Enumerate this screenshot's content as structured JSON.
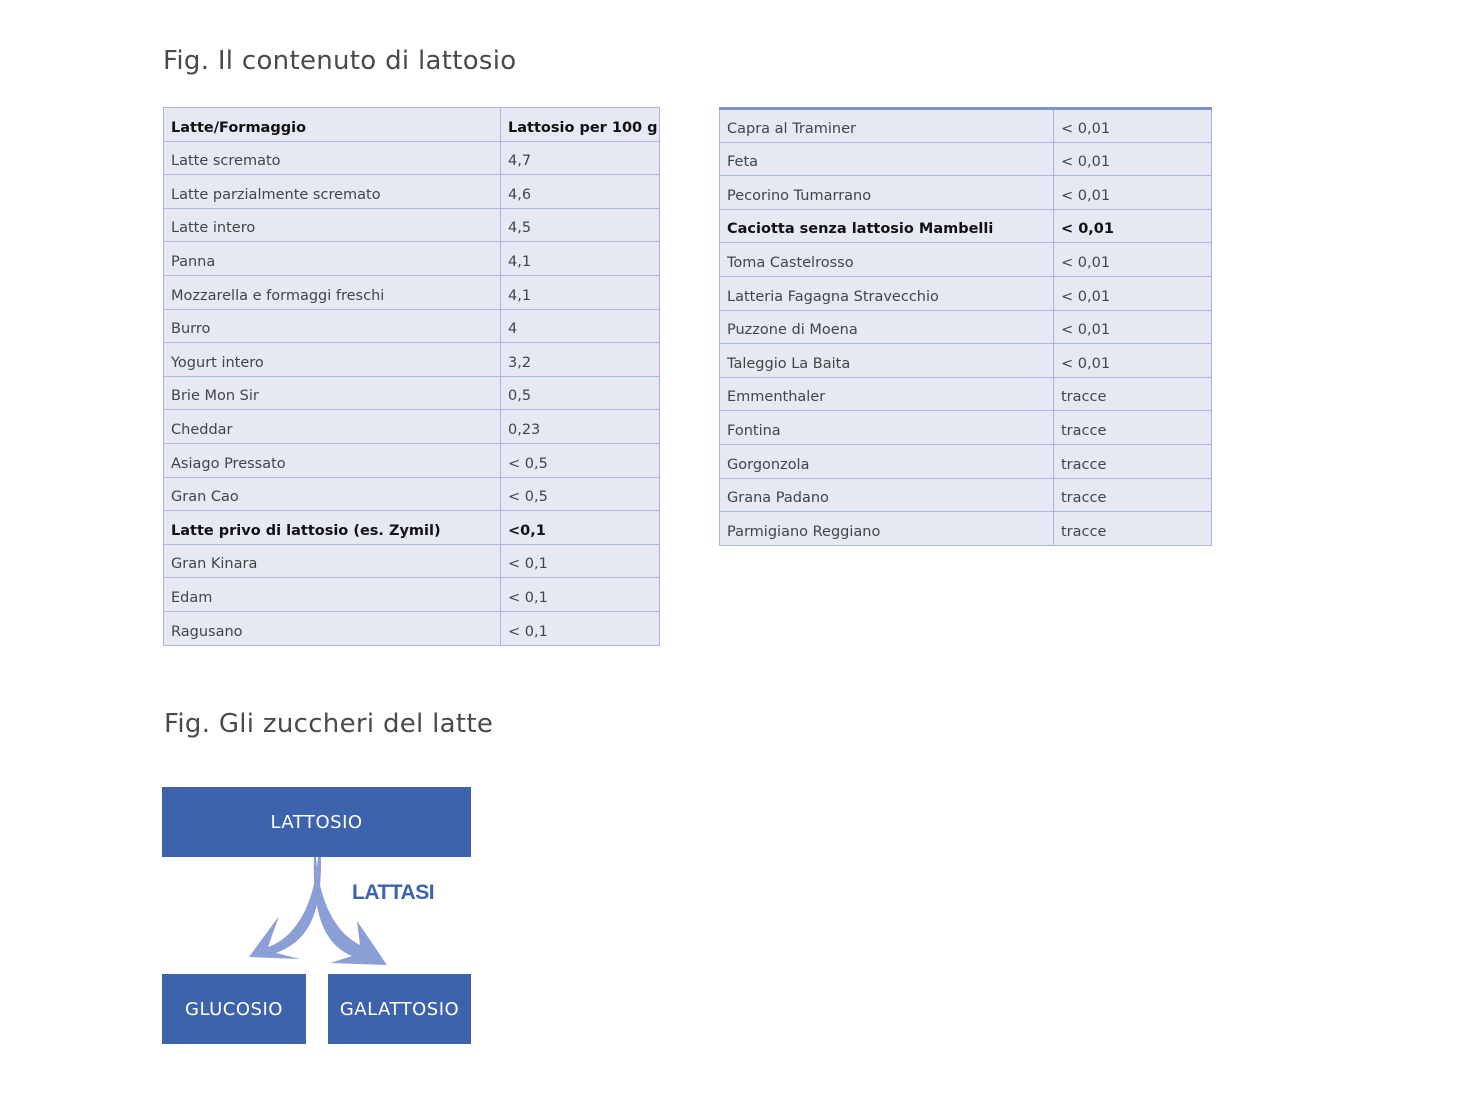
{
  "figure1": {
    "title": "Fig. Il contenuto di lattosio",
    "table_left": {
      "header": [
        "Latte/Formaggio",
        "Lattosio per 100 g"
      ],
      "rows": [
        [
          "Latte scremato",
          "4,7"
        ],
        [
          "Latte parzialmente scremato",
          "4,6"
        ],
        [
          "Latte intero",
          "4,5"
        ],
        [
          "Panna",
          "4,1"
        ],
        [
          "Mozzarella e formaggi freschi",
          "4,1"
        ],
        [
          "Burro",
          "4"
        ],
        [
          "Yogurt intero",
          "3,2"
        ],
        [
          "Brie Mon Sir",
          "0,5"
        ],
        [
          "Cheddar",
          "0,23"
        ],
        [
          "Asiago Pressato",
          "< 0,5"
        ],
        [
          "Gran Cao",
          "< 0,5"
        ],
        [
          "Latte privo di lattosio (es. Zymil)",
          "<0,1"
        ],
        [
          "Gran Kinara",
          "< 0,1"
        ],
        [
          "Edam",
          "< 0,1"
        ],
        [
          "Ragusano",
          "< 0,1"
        ]
      ]
    },
    "table_right": {
      "rows": [
        [
          "Capra al Traminer",
          "< 0,01"
        ],
        [
          "Feta",
          "< 0,01"
        ],
        [
          "Pecorino Tumarrano",
          "< 0,01"
        ],
        [
          "Caciotta senza lattosio Mambelli",
          "< 0,01"
        ],
        [
          "Toma Castelrosso",
          "< 0,01"
        ],
        [
          "Latteria Fagagna Stravecchio",
          "< 0,01"
        ],
        [
          "Puzzone di Moena",
          "< 0,01"
        ],
        [
          "Taleggio La Baita",
          "< 0,01"
        ],
        [
          "Emmenthaler",
          "tracce"
        ],
        [
          "Fontina",
          "tracce"
        ],
        [
          "Gorgonzola",
          "tracce"
        ],
        [
          "Grana Padano",
          "tracce"
        ],
        [
          "Parmigiano Reggiano",
          "tracce"
        ]
      ]
    }
  },
  "figure2": {
    "title": "Fig. Gli zuccheri del latte",
    "top_box": "LATTOSIO",
    "enzyme": "LATTASI",
    "left_box": "GLUCOSIO",
    "right_box": "GALATTOSIO"
  },
  "colors": {
    "box_fill": "#3d63ad",
    "arrow_fill": "#8b9fd6",
    "table_fill": "#e6e9f4",
    "table_border": "#a9b6de"
  }
}
